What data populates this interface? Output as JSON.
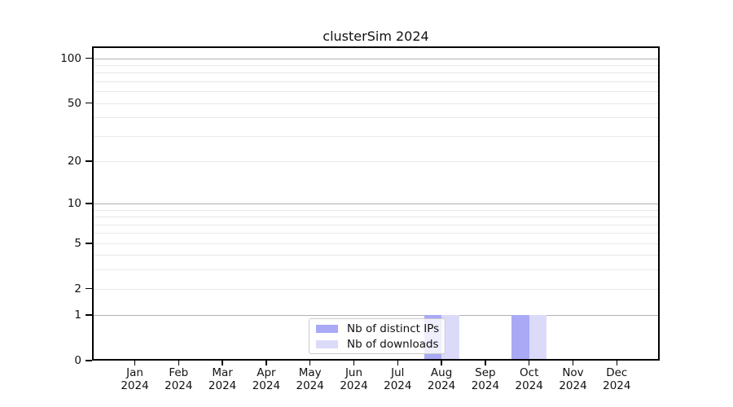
{
  "chart_data": {
    "type": "bar",
    "title": "clusterSim 2024",
    "x": {
      "months": [
        "Jan",
        "Feb",
        "Mar",
        "Apr",
        "May",
        "Jun",
        "Jul",
        "Aug",
        "Sep",
        "Oct",
        "Nov",
        "Dec"
      ],
      "year": "2024"
    },
    "series": [
      {
        "name": "Nb of distinct IPs",
        "slug": "distinct-ips",
        "color": "#a9a9f6",
        "values": [
          0,
          0,
          0,
          0,
          0,
          0,
          0,
          1,
          0,
          1,
          0,
          0
        ]
      },
      {
        "name": "Nb of downloads",
        "slug": "downloads",
        "color": "#dbdbf9",
        "values": [
          0,
          0,
          0,
          0,
          0,
          0,
          0,
          1,
          0,
          1,
          0,
          0
        ]
      }
    ],
    "y_axis": {
      "scale": "log1p",
      "ylim": [
        0,
        120
      ],
      "labeled_ticks": [
        100,
        50,
        20,
        10,
        5,
        2,
        1,
        0
      ],
      "major_gridlines": [
        100,
        10,
        1
      ],
      "minor_gridlines": [
        90,
        80,
        70,
        60,
        50,
        40,
        30,
        20,
        9,
        8,
        7,
        6,
        5,
        4,
        3,
        2
      ]
    },
    "legend": {
      "position": "lower-center",
      "entries": [
        "Nb of distinct IPs",
        "Nb of downloads"
      ]
    },
    "colors": {
      "major_grid": "#b3b3b3",
      "minor_grid": "#e8e8e8",
      "spine": "#000000",
      "legend_border": "#cccccc"
    }
  }
}
